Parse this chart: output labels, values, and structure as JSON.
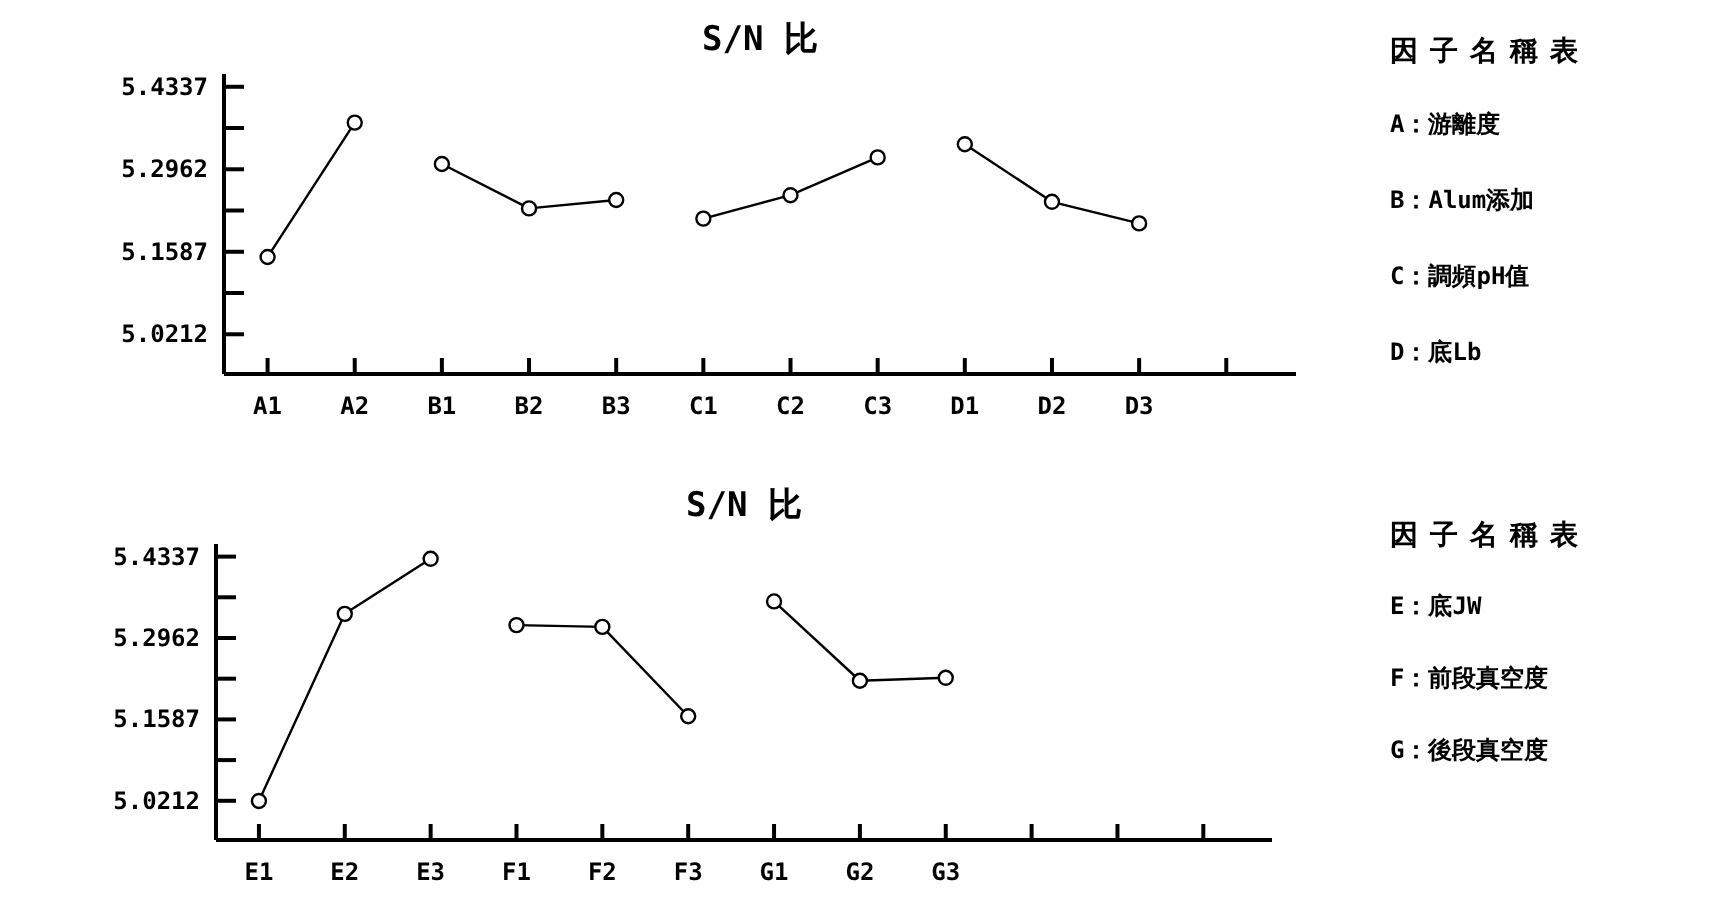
{
  "chart_data": [
    {
      "type": "line",
      "title": "S/N 比",
      "categories": [
        "A1",
        "A2",
        "B1",
        "B2",
        "B3",
        "C1",
        "C2",
        "C3",
        "D1",
        "D2",
        "D3",
        null
      ],
      "series": [
        {
          "color": "#000000",
          "values": [
            5.15,
            5.374,
            null,
            null,
            null,
            null,
            null,
            null,
            null,
            null,
            null,
            null
          ]
        },
        {
          "color": "#000000",
          "values": [
            null,
            null,
            5.305,
            5.231,
            5.245,
            null,
            null,
            null,
            null,
            null,
            null,
            null
          ]
        },
        {
          "color": "#000000",
          "values": [
            null,
            null,
            null,
            null,
            null,
            5.214,
            5.253,
            5.316,
            null,
            null,
            null,
            null
          ]
        },
        {
          "color": "#000000",
          "values": [
            null,
            null,
            null,
            null,
            null,
            null,
            null,
            null,
            5.338,
            5.242,
            5.206,
            null
          ]
        }
      ],
      "ylim": [
        4.955,
        5.455
      ],
      "yticks": [
        5.0212,
        {
          "value": 5.09,
          "label": null
        },
        5.1587,
        {
          "value": 5.2275,
          "label": null
        },
        5.2962,
        {
          "value": 5.365,
          "label": null
        },
        5.4337
      ],
      "marker": "circle",
      "line_style": "solid",
      "grid": false,
      "annotations": [
        "因子名稱表",
        "A：游離度",
        "B：Alum添加",
        "C：調頻pH值",
        "D：底Lb"
      ]
    },
    {
      "type": "line",
      "title": "S/N 比",
      "categories": [
        "E1",
        "E2",
        "E3",
        "F1",
        "F2",
        "F3",
        "G1",
        "G2",
        "G3",
        null,
        null,
        null
      ],
      "series": [
        {
          "color": "#000000",
          "values": [
            5.021,
            5.337,
            5.43,
            null,
            null,
            null,
            null,
            null,
            null,
            null,
            null,
            null
          ]
        },
        {
          "color": "#000000",
          "values": [
            null,
            null,
            null,
            5.318,
            5.315,
            5.164,
            null,
            null,
            null,
            null,
            null,
            null
          ]
        },
        {
          "color": "#000000",
          "values": [
            null,
            null,
            null,
            null,
            null,
            null,
            5.358,
            5.224,
            5.229,
            null,
            null,
            null
          ]
        }
      ],
      "ylim": [
        4.955,
        5.455
      ],
      "yticks": [
        5.0212,
        {
          "value": 5.09,
          "label": null
        },
        5.1587,
        {
          "value": 5.2275,
          "label": null
        },
        5.2962,
        {
          "value": 5.365,
          "label": null
        },
        5.4337
      ],
      "marker": "circle",
      "line_style": "solid",
      "grid": false,
      "annotations": [
        "因子名稱表",
        "E：底JW",
        "F：前段真空度",
        "G：後段真空度"
      ]
    }
  ]
}
